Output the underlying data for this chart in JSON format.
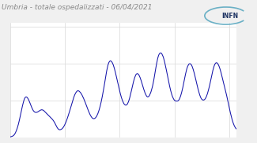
{
  "title": "Umbria - totale ospedalizzati - 06/04/2021",
  "line_color": "#1414aa",
  "bg_color": "#f0f0f0",
  "plot_bg_color": "#ffffff",
  "grid_color": "#d8d8d8",
  "title_color": "#888888",
  "title_fontsize": 6.5,
  "figsize": [
    3.25,
    1.82
  ],
  "dpi": 100,
  "ylim_min": 0,
  "ylim_max": 620,
  "values": [
    2,
    3,
    4,
    5,
    6,
    8,
    10,
    13,
    17,
    22,
    28,
    35,
    43,
    52,
    62,
    73,
    85,
    98,
    112,
    126,
    140,
    154,
    167,
    179,
    191,
    201,
    209,
    215,
    218,
    219,
    218,
    215,
    211,
    206,
    200,
    193,
    186,
    178,
    170,
    163,
    156,
    150,
    145,
    141,
    138,
    136,
    135,
    135,
    135,
    136,
    137,
    139,
    141,
    143,
    145,
    147,
    148,
    149,
    149,
    148,
    147,
    145,
    142,
    139,
    136,
    133,
    130,
    127,
    124,
    121,
    118,
    115,
    112,
    109,
    106,
    103,
    100,
    97,
    93,
    89,
    84,
    79,
    73,
    67,
    61,
    56,
    51,
    47,
    44,
    42,
    41,
    41,
    42,
    43,
    45,
    48,
    51,
    55,
    60,
    65,
    71,
    78,
    85,
    93,
    101,
    110,
    119,
    128,
    138,
    148,
    158,
    168,
    178,
    188,
    198,
    208,
    217,
    225,
    232,
    238,
    243,
    247,
    250,
    252,
    252,
    251,
    249,
    246,
    243,
    239,
    234,
    229,
    223,
    217,
    210,
    203,
    196,
    188,
    180,
    172,
    164,
    156,
    148,
    141,
    134,
    127,
    121,
    116,
    111,
    107,
    104,
    102,
    101,
    101,
    102,
    104,
    107,
    111,
    116,
    122,
    129,
    137,
    146,
    156,
    167,
    179,
    192,
    206,
    221,
    237,
    253,
    270,
    288,
    306,
    324,
    342,
    359,
    374,
    387,
    397,
    405,
    410,
    413,
    414,
    413,
    410,
    406,
    400,
    393,
    384,
    374,
    363,
    351,
    338,
    325,
    312,
    299,
    286,
    273,
    260,
    248,
    236,
    225,
    215,
    206,
    198,
    191,
    185,
    180,
    177,
    175,
    174,
    175,
    177,
    181,
    187,
    194,
    203,
    213,
    225,
    237,
    250,
    263,
    276,
    289,
    301,
    312,
    322,
    330,
    337,
    342,
    344,
    345,
    344,
    341,
    337,
    331,
    324,
    316,
    307,
    297,
    287,
    277,
    267,
    258,
    249,
    241,
    234,
    228,
    223,
    220,
    219,
    220,
    222,
    226,
    232,
    239,
    247,
    257,
    268,
    280,
    294,
    309,
    326,
    344,
    362,
    380,
    396,
    411,
    425,
    436,
    445,
    451,
    455,
    457,
    457,
    455,
    451,
    445,
    438,
    429,
    418,
    406,
    393,
    379,
    365,
    350,
    335,
    320,
    305,
    291,
    277,
    264,
    252,
    241,
    231,
    222,
    215,
    209,
    204,
    200,
    198,
    197,
    196,
    196,
    196,
    197,
    199,
    203,
    208,
    215,
    223,
    233,
    244,
    256,
    269,
    283,
    298,
    313,
    328,
    342,
    355,
    367,
    377,
    385,
    391,
    396,
    398,
    399,
    398,
    395,
    391,
    385,
    377,
    368,
    358,
    347,
    335,
    323,
    310,
    297,
    284,
    272,
    260,
    249,
    239,
    229,
    221,
    214,
    209,
    205,
    203,
    202,
    202,
    203,
    205,
    209,
    214,
    220,
    228,
    236,
    246,
    257,
    269,
    281,
    295,
    309,
    323,
    337,
    350,
    363,
    374,
    384,
    392,
    398,
    402,
    404,
    404,
    402,
    398,
    393,
    387,
    379,
    370,
    360,
    349,
    337,
    325,
    313,
    301,
    289,
    277,
    265,
    253,
    241,
    228,
    214,
    200,
    186,
    172,
    158,
    145,
    132,
    120,
    108,
    97,
    87,
    78,
    70,
    63,
    57,
    52,
    48,
    45
  ]
}
